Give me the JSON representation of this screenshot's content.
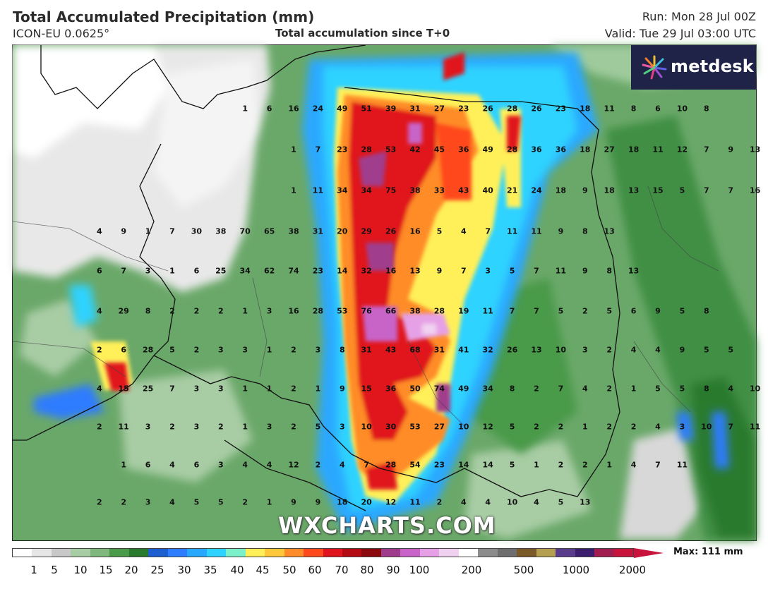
{
  "header": {
    "title": "Total Accumulated Precipitation (mm)",
    "model": "ICON-EU 0.0625°",
    "subtitle": "Total accumulation since T+0",
    "run": "Run: Mon 28 Jul 00Z",
    "valid": "Valid: Tue 29 Jul 03:00 UTC"
  },
  "logo": {
    "text": "metdesk",
    "icon": "starburst-icon"
  },
  "watermark": "WXCHARTS.COM",
  "legend": {
    "max_label": "Max: 111 mm",
    "ticks": [
      "1",
      "5",
      "10",
      "15",
      "20",
      "25",
      "30",
      "35",
      "40",
      "45",
      "50",
      "60",
      "70",
      "80",
      "90",
      "100",
      "200",
      "500",
      "1000",
      "2000"
    ],
    "colors": [
      "#ffffff",
      "#e6e6e6",
      "#c8c8c8",
      "#a8cca4",
      "#7fb77c",
      "#4a9a4a",
      "#2a7a2e",
      "#1e5fd0",
      "#2e7cff",
      "#29a8ff",
      "#2fd3ff",
      "#7cf0c8",
      "#fff05a",
      "#ffc83a",
      "#ff8c28",
      "#ff4a1e",
      "#e0141e",
      "#b40a14",
      "#8a0a10",
      "#a03c8c",
      "#c864c8",
      "#e6a0e6",
      "#f0d2f0",
      "#ffffff",
      "#8c8c8c",
      "#6e6e6e",
      "#7a5a28",
      "#b4a050",
      "#5a3c8c",
      "#3c1e6e",
      "#a01e50",
      "#c8143c"
    ]
  },
  "grid_values": [
    [
      "1",
      "6",
      "16",
      "24",
      "49",
      "51",
      "39",
      "31",
      "27",
      "23",
      "26",
      "28",
      "26",
      "23",
      "18",
      "11",
      "8",
      "6",
      "10",
      "8"
    ],
    [
      "1",
      "7",
      "23",
      "28",
      "53",
      "42",
      "45",
      "36",
      "49",
      "28",
      "36",
      "36",
      "18",
      "27",
      "18",
      "11",
      "12",
      "7",
      "9",
      "13"
    ],
    [
      "1",
      "11",
      "34",
      "34",
      "75",
      "38",
      "33",
      "43",
      "40",
      "21",
      "24",
      "18",
      "9",
      "18",
      "13",
      "15",
      "5",
      "7",
      "7",
      "16"
    ],
    [
      "4",
      "9",
      "1",
      "7",
      "30",
      "38",
      "70",
      "65",
      "38",
      "31",
      "20",
      "29",
      "26",
      "16",
      "5",
      "4",
      "7",
      "11",
      "11",
      "9",
      "8",
      "13"
    ],
    [
      "6",
      "7",
      "3",
      "1",
      "6",
      "25",
      "34",
      "62",
      "74",
      "23",
      "14",
      "32",
      "16",
      "13",
      "9",
      "7",
      "3",
      "5",
      "7",
      "11",
      "9",
      "8",
      "13"
    ],
    [
      "4",
      "29",
      "8",
      "2",
      "2",
      "2",
      "1",
      "3",
      "16",
      "28",
      "53",
      "76",
      "66",
      "38",
      "28",
      "19",
      "11",
      "7",
      "7",
      "5",
      "2",
      "5",
      "6",
      "9",
      "5",
      "8"
    ],
    [
      "2",
      "6",
      "28",
      "5",
      "2",
      "3",
      "3",
      "1",
      "2",
      "3",
      "8",
      "31",
      "43",
      "68",
      "31",
      "41",
      "32",
      "26",
      "13",
      "10",
      "3",
      "2",
      "4",
      "4",
      "9",
      "5",
      "5"
    ],
    [
      "4",
      "15",
      "25",
      "7",
      "3",
      "3",
      "1",
      "1",
      "2",
      "1",
      "9",
      "15",
      "36",
      "50",
      "74",
      "49",
      "34",
      "8",
      "2",
      "7",
      "4",
      "2",
      "1",
      "5",
      "5",
      "8",
      "4",
      "10"
    ],
    [
      "2",
      "11",
      "3",
      "2",
      "3",
      "2",
      "1",
      "3",
      "2",
      "5",
      "3",
      "10",
      "30",
      "53",
      "27",
      "10",
      "12",
      "5",
      "2",
      "2",
      "1",
      "2",
      "2",
      "4",
      "3",
      "10",
      "7",
      "11"
    ],
    [
      "1",
      "6",
      "4",
      "6",
      "3",
      "4",
      "4",
      "12",
      "2",
      "4",
      "7",
      "28",
      "54",
      "23",
      "14",
      "14",
      "5",
      "1",
      "2",
      "2",
      "1",
      "4",
      "7",
      "11"
    ],
    [
      "2",
      "2",
      "3",
      "4",
      "5",
      "5",
      "2",
      "1",
      "9",
      "9",
      "18",
      "20",
      "12",
      "11",
      "2",
      "4",
      "4",
      "10",
      "4",
      "5",
      "13"
    ]
  ]
}
